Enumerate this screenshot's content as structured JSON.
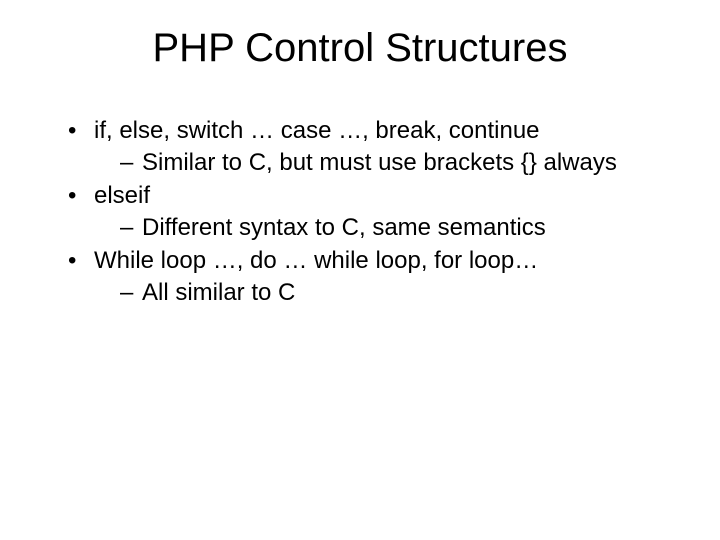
{
  "slide": {
    "title": "PHP Control Structures",
    "title_fontsize": 40,
    "title_color": "#000000",
    "body_fontsize": 24,
    "body_color": "#000000",
    "background_color": "#ffffff",
    "font_family": "Arial",
    "bullets": [
      {
        "text": "if, else, switch … case …, break, continue",
        "sub": [
          "Similar to C, but must use brackets {} always"
        ]
      },
      {
        "text": "elseif",
        "sub": [
          "Different syntax to C, same semantics"
        ]
      },
      {
        "text": "While loop …, do … while loop, for loop…",
        "sub": [
          "All similar to C"
        ]
      }
    ]
  }
}
